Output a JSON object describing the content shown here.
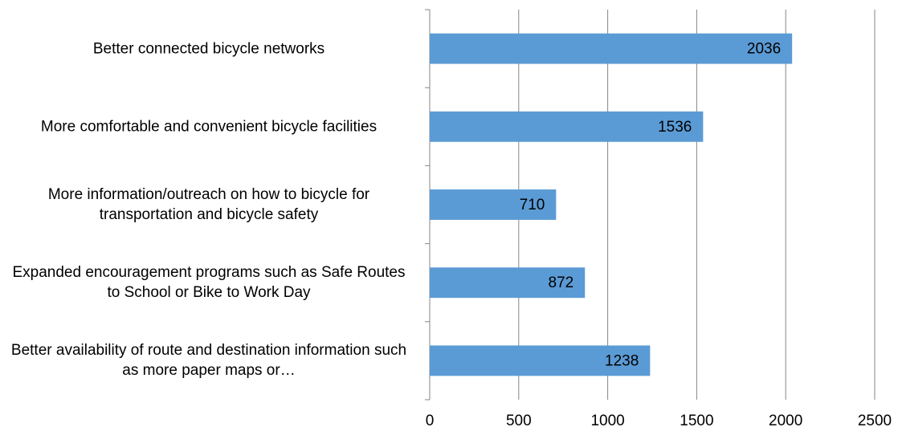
{
  "chart_data": {
    "type": "bar",
    "orientation": "horizontal",
    "categories": [
      "Better connected bicycle networks",
      "More comfortable and convenient bicycle facilities",
      "More information/outreach on how to bicycle for transportation and bicycle safety",
      "Expanded encouragement programs such as Safe Routes to School or Bike to Work Day",
      "Better availability of route and destination information such as more paper maps or…"
    ],
    "values": [
      2036,
      1536,
      710,
      872,
      1238
    ],
    "color": "#5b9bd5",
    "xlim": [
      0,
      2500
    ],
    "xticks": [
      0,
      500,
      1000,
      1500,
      2000,
      2500
    ],
    "grid": true
  }
}
